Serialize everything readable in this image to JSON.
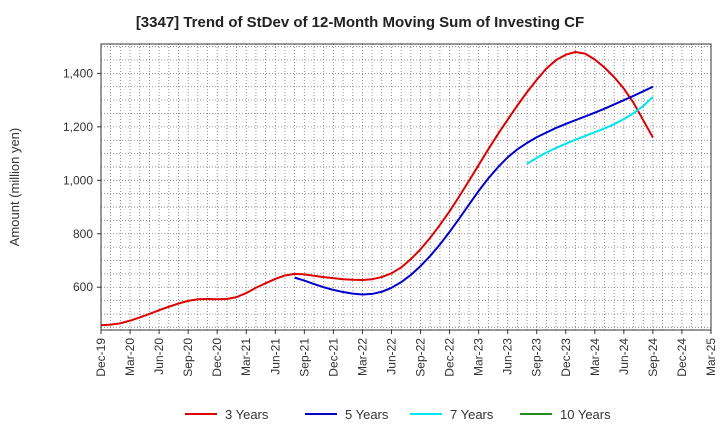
{
  "chart_data": {
    "type": "line",
    "title": "[3347]  Trend of StDev of 12-Month Moving Sum of Investing CF",
    "xlabel": "",
    "ylabel": "Amount (million yen)",
    "ylim": [
      440,
      1510
    ],
    "y_ticks": [
      600,
      800,
      1000,
      1200,
      1400
    ],
    "y_tick_labels": [
      "600",
      "800",
      "1,000",
      "1,200",
      "1,400"
    ],
    "x_tick_labels": [
      "Dec-19",
      "Mar-20",
      "Jun-20",
      "Sep-20",
      "Dec-20",
      "Mar-21",
      "Jun-21",
      "Sep-21",
      "Dec-21",
      "Mar-22",
      "Jun-22",
      "Sep-22",
      "Dec-22",
      "Mar-23",
      "Jun-23",
      "Sep-23",
      "Dec-23",
      "Mar-24",
      "Jun-24",
      "Sep-24",
      "Dec-24",
      "Mar-25"
    ],
    "grid": true,
    "legend_position": "bottom",
    "series": [
      {
        "name": "3 Years",
        "color": "#dd0000",
        "points": [
          [
            "Dec-19",
            458
          ],
          [
            "Jan-20",
            460
          ],
          [
            "Feb-20",
            465
          ],
          [
            "Mar-20",
            475
          ],
          [
            "Apr-20",
            487
          ],
          [
            "May-20",
            500
          ],
          [
            "Jun-20",
            514
          ],
          [
            "Jul-20",
            527
          ],
          [
            "Aug-20",
            539
          ],
          [
            "Sep-20",
            549
          ],
          [
            "Oct-20",
            555
          ],
          [
            "Nov-20",
            556
          ],
          [
            "Dec-20",
            555
          ],
          [
            "Jan-21",
            556
          ],
          [
            "Feb-21",
            563
          ],
          [
            "Mar-21",
            578
          ],
          [
            "Apr-21",
            598
          ],
          [
            "May-21",
            615
          ],
          [
            "Jun-21",
            631
          ],
          [
            "Jul-21",
            644
          ],
          [
            "Aug-21",
            650
          ],
          [
            "Sep-21",
            648
          ],
          [
            "Oct-21",
            643
          ],
          [
            "Nov-21",
            638
          ],
          [
            "Dec-21",
            634
          ],
          [
            "Jan-22",
            630
          ],
          [
            "Feb-22",
            628
          ],
          [
            "Mar-22",
            627
          ],
          [
            "Apr-22",
            630
          ],
          [
            "May-22",
            638
          ],
          [
            "Jun-22",
            652
          ],
          [
            "Jul-22",
            674
          ],
          [
            "Aug-22",
            705
          ],
          [
            "Sep-22",
            742
          ],
          [
            "Oct-22",
            785
          ],
          [
            "Nov-22",
            833
          ],
          [
            "Dec-22",
            884
          ],
          [
            "Jan-23",
            940
          ],
          [
            "Feb-23",
            998
          ],
          [
            "Mar-23",
            1057
          ],
          [
            "Apr-23",
            1116
          ],
          [
            "May-23",
            1173
          ],
          [
            "Jun-23",
            1227
          ],
          [
            "Jul-23",
            1280
          ],
          [
            "Aug-23",
            1330
          ],
          [
            "Sep-23",
            1376
          ],
          [
            "Oct-23",
            1418
          ],
          [
            "Nov-23",
            1450
          ],
          [
            "Dec-23",
            1470
          ],
          [
            "Jan-24",
            1480
          ],
          [
            "Feb-24",
            1474
          ],
          [
            "Mar-24",
            1452
          ],
          [
            "Apr-24",
            1422
          ],
          [
            "May-24",
            1386
          ],
          [
            "Jun-24",
            1343
          ],
          [
            "Jul-24",
            1290
          ],
          [
            "Aug-24",
            1225
          ],
          [
            "Sep-24",
            1160
          ]
        ]
      },
      {
        "name": "5 Years",
        "color": "#0000cc",
        "points": [
          [
            "Aug-21",
            636
          ],
          [
            "Sep-21",
            625
          ],
          [
            "Oct-21",
            612
          ],
          [
            "Nov-21",
            600
          ],
          [
            "Dec-21",
            590
          ],
          [
            "Jan-22",
            582
          ],
          [
            "Feb-22",
            576
          ],
          [
            "Mar-22",
            573
          ],
          [
            "Apr-22",
            575
          ],
          [
            "May-22",
            583
          ],
          [
            "Jun-22",
            598
          ],
          [
            "Jul-22",
            619
          ],
          [
            "Aug-22",
            646
          ],
          [
            "Sep-22",
            679
          ],
          [
            "Oct-22",
            717
          ],
          [
            "Nov-22",
            760
          ],
          [
            "Dec-22",
            807
          ],
          [
            "Jan-23",
            857
          ],
          [
            "Feb-23",
            909
          ],
          [
            "Mar-23",
            960
          ],
          [
            "Apr-23",
            1007
          ],
          [
            "May-23",
            1049
          ],
          [
            "Jun-23",
            1086
          ],
          [
            "Jul-23",
            1116
          ],
          [
            "Aug-23",
            1140
          ],
          [
            "Sep-23",
            1161
          ],
          [
            "Oct-23",
            1179
          ],
          [
            "Nov-23",
            1196
          ],
          [
            "Dec-23",
            1211
          ],
          [
            "Jan-24",
            1225
          ],
          [
            "Feb-24",
            1239
          ],
          [
            "Mar-24",
            1253
          ],
          [
            "Apr-24",
            1268
          ],
          [
            "May-24",
            1284
          ],
          [
            "Jun-24",
            1300
          ],
          [
            "Jul-24",
            1316
          ],
          [
            "Aug-24",
            1333
          ],
          [
            "Sep-24",
            1350
          ]
        ]
      },
      {
        "name": "7 Years",
        "color": "#00e5ee",
        "points": [
          [
            "Aug-23",
            1062
          ],
          [
            "Sep-23",
            1084
          ],
          [
            "Oct-23",
            1104
          ],
          [
            "Nov-23",
            1121
          ],
          [
            "Dec-23",
            1137
          ],
          [
            "Jan-24",
            1152
          ],
          [
            "Feb-24",
            1166
          ],
          [
            "Mar-24",
            1180
          ],
          [
            "Apr-24",
            1194
          ],
          [
            "May-24",
            1210
          ],
          [
            "Jun-24",
            1229
          ],
          [
            "Jul-24",
            1251
          ],
          [
            "Aug-24",
            1278
          ],
          [
            "Sep-24",
            1312
          ]
        ]
      },
      {
        "name": "10 Years",
        "color": "#228b22",
        "points": []
      }
    ]
  }
}
